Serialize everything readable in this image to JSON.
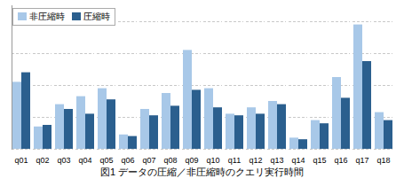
{
  "chart_data": {
    "type": "bar",
    "caption": "図1 データの圧縮／非圧縮時のクエリ実行時間",
    "categories": [
      "q01",
      "q02",
      "q03",
      "q04",
      "q05",
      "q06",
      "q07",
      "q08",
      "q09",
      "q10",
      "q11",
      "q12",
      "q13",
      "q14",
      "q15",
      "q16",
      "q17",
      "q18"
    ],
    "series": [
      {
        "name": "非圧縮時",
        "color": "#a8c8e8",
        "values": [
          4.2,
          1.4,
          2.8,
          3.3,
          3.8,
          0.9,
          2.5,
          3.5,
          6.2,
          3.8,
          2.2,
          2.6,
          3.0,
          0.7,
          1.8,
          4.5,
          7.8,
          2.3
        ]
      },
      {
        "name": "圧縮時",
        "color": "#2b5f8e",
        "values": [
          4.8,
          1.5,
          2.5,
          2.2,
          3.1,
          0.8,
          2.1,
          2.7,
          3.7,
          2.6,
          2.1,
          2.2,
          2.8,
          0.6,
          1.6,
          3.2,
          5.5,
          1.8
        ]
      }
    ],
    "ylim": [
      0,
      9
    ],
    "yticks": [
      0,
      2,
      4,
      6,
      8
    ],
    "grid": true,
    "legend": "upper left",
    "tick_labels": "x"
  }
}
